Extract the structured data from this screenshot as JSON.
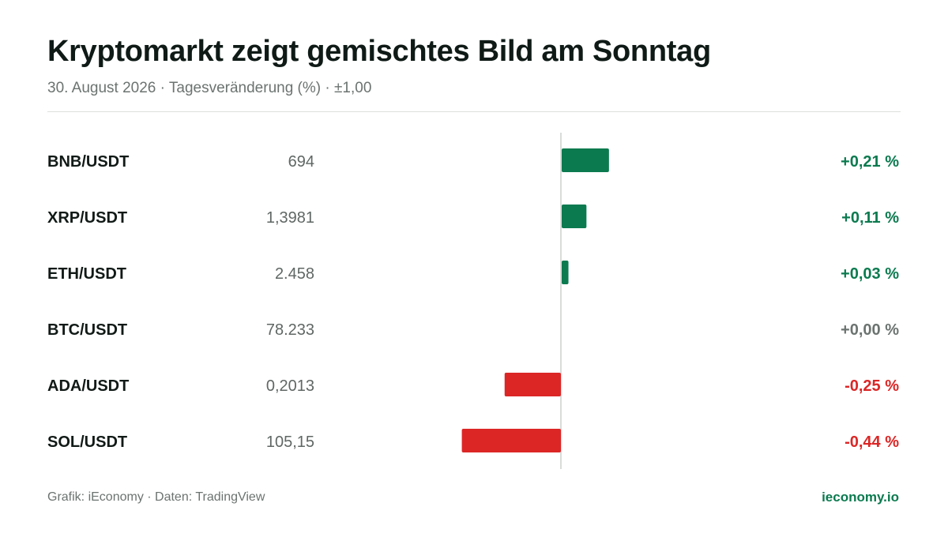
{
  "header": {
    "title": "Kryptomarkt zeigt gemischtes Bild am Sonntag",
    "subtitle": "30. August 2026 · Tagesveränderung (%) · ±1,00"
  },
  "footer": {
    "source": "Grafik: iEconomy · Daten: TradingView",
    "brand": "ieconomy.io"
  },
  "colors": {
    "positive": "#0b7a4f",
    "negative": "#dc2626",
    "neutral": "#6b7370",
    "axis": "#d9dcda"
  },
  "chart_data": {
    "type": "bar",
    "orientation": "horizontal",
    "title": "Kryptomarkt zeigt gemischtes Bild am Sonntag",
    "subtitle": "30. August 2026 · Tagesveränderung (%) · ±1,00",
    "xlim": [
      -1.0,
      1.0
    ],
    "grid": false,
    "rows": [
      {
        "pair": "BNB/USDT",
        "price": "694",
        "change": 0.21,
        "change_label": "+0,21 %"
      },
      {
        "pair": "XRP/USDT",
        "price": "1,3981",
        "change": 0.11,
        "change_label": "+0,11 %"
      },
      {
        "pair": "ETH/USDT",
        "price": "2.458",
        "change": 0.03,
        "change_label": "+0,03 %"
      },
      {
        "pair": "BTC/USDT",
        "price": "78.233",
        "change": 0.0,
        "change_label": "+0,00 %"
      },
      {
        "pair": "ADA/USDT",
        "price": "0,2013",
        "change": -0.25,
        "change_label": "-0,25 %"
      },
      {
        "pair": "SOL/USDT",
        "price": "105,15",
        "change": -0.44,
        "change_label": "-0,44 %"
      }
    ]
  }
}
